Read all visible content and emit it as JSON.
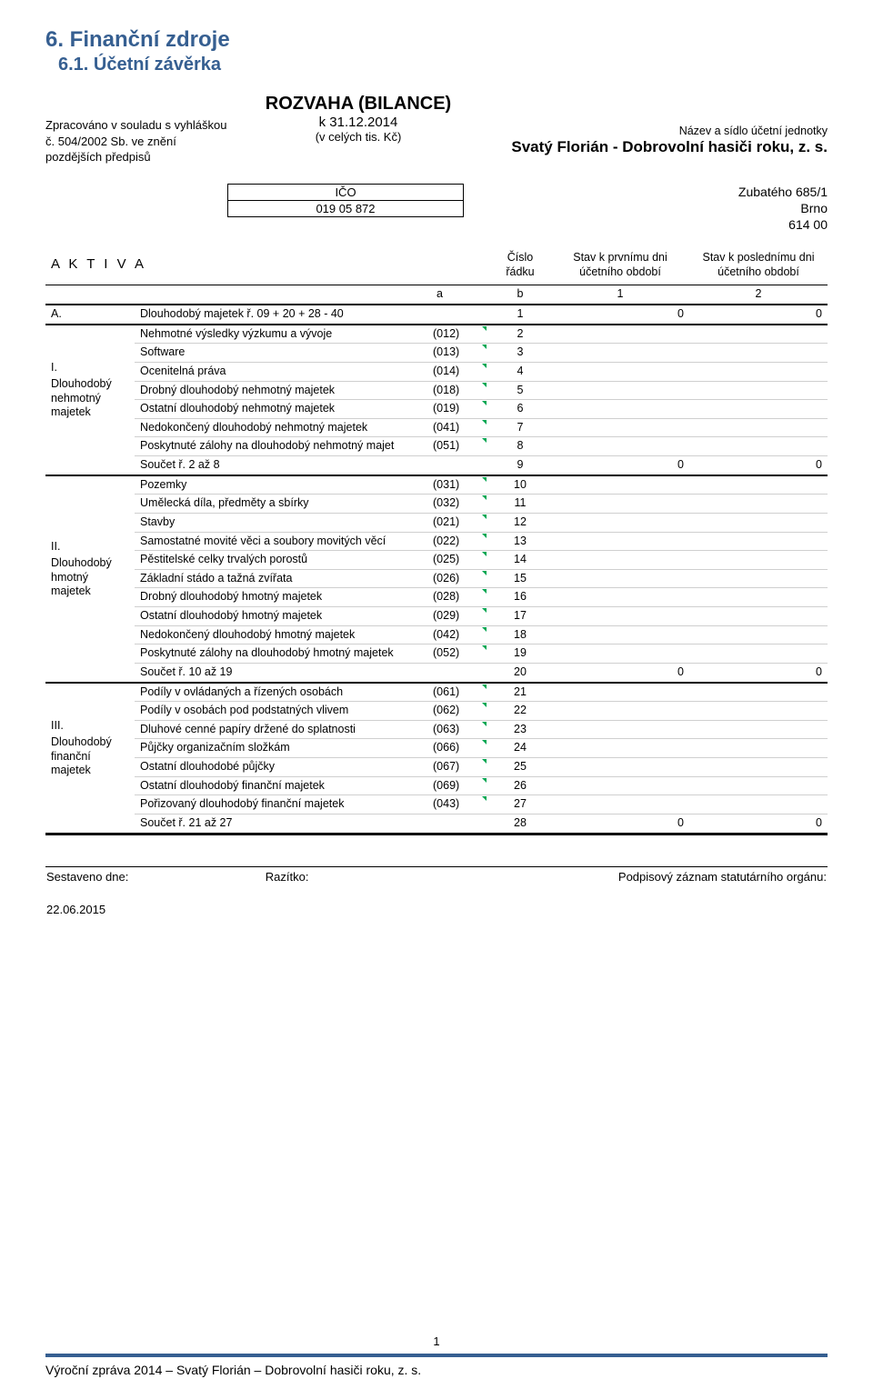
{
  "colors": {
    "heading": "#365f91",
    "text": "#000000",
    "tri_marker": "#00a651",
    "rule_light": "#cfcfcf",
    "rule_heavy": "#000000",
    "background": "#ffffff"
  },
  "typography": {
    "base_fontsize_pt": 9.5,
    "h1_pt": 18,
    "h2_pt": 15,
    "family": "Arial"
  },
  "headings": {
    "h1": "6. Finanční zdroje",
    "h2": "6.1. Účetní závěrka"
  },
  "header": {
    "left_note": "Zpracováno v souladu s vyhláškou č. 504/2002 Sb. ve znění pozdějších předpisů",
    "doc_title": "ROZVAHA (BILANCE)",
    "asof": "k 31.12.2014",
    "units": "(v celých tis. Kč)",
    "org_label": "Název a sídlo účetní jednotky",
    "org_name": "Svatý Florián - Dobrovolní hasiči roku, z. s.",
    "ico_label": "IČO",
    "ico_value": "019 05 872",
    "addr1": "Zubatého 685/1",
    "addr2": "Brno",
    "addr3": "614 00"
  },
  "table": {
    "title": "A K T I V A",
    "col_radek": "Číslo řádku",
    "col_stav1": "Stav k prvnímu dni účetního období",
    "col_stav2": "Stav k poslednímu dni účetního období",
    "ab": {
      "a": "a",
      "b": "b",
      "c1": "1",
      "c2": "2"
    },
    "sectionA": {
      "label": "A.",
      "name": "Dlouhodobý majetek ř. 09 + 20 + 28 - 40",
      "num": "1",
      "v1": "0",
      "v2": "0"
    },
    "groups": [
      {
        "side_roman": "I.",
        "side_label": "Dlouhodobý nehmotný majetek",
        "rows": [
          {
            "name": "Nehmotné výsledky výzkumu a vývoje",
            "acct": "(012)",
            "num": "2"
          },
          {
            "name": "Software",
            "acct": "(013)",
            "num": "3"
          },
          {
            "name": "Ocenitelná práva",
            "acct": "(014)",
            "num": "4"
          },
          {
            "name": "Drobný dlouhodobý nehmotný majetek",
            "acct": "(018)",
            "num": "5"
          },
          {
            "name": "Ostatní dlouhodobý nehmotný majetek",
            "acct": "(019)",
            "num": "6"
          },
          {
            "name": "Nedokončený dlouhodobý nehmotný majetek",
            "acct": "(041)",
            "num": "7"
          },
          {
            "name": "Poskytnuté zálohy na dlouhodobý nehmotný majet",
            "acct": "(051)",
            "num": "8"
          }
        ],
        "sum": {
          "name": "Součet ř. 2 až 8",
          "num": "9",
          "v1": "0",
          "v2": "0"
        }
      },
      {
        "side_roman": "II.",
        "side_label": "Dlouhodobý hmotný majetek",
        "rows": [
          {
            "name": "Pozemky",
            "acct": "(031)",
            "num": "10"
          },
          {
            "name": "Umělecká díla, předměty a sbírky",
            "acct": "(032)",
            "num": "11"
          },
          {
            "name": "Stavby",
            "acct": "(021)",
            "num": "12"
          },
          {
            "name": "Samostatné movité věci a soubory movitých věcí",
            "acct": "(022)",
            "num": "13"
          },
          {
            "name": "Pěstitelské celky trvalých porostů",
            "acct": "(025)",
            "num": "14"
          },
          {
            "name": "Základní stádo a tažná zvířata",
            "acct": "(026)",
            "num": "15"
          },
          {
            "name": "Drobný dlouhodobý hmotný majetek",
            "acct": "(028)",
            "num": "16"
          },
          {
            "name": "Ostatní dlouhodobý hmotný majetek",
            "acct": "(029)",
            "num": "17"
          },
          {
            "name": "Nedokončený dlouhodobý hmotný majetek",
            "acct": "(042)",
            "num": "18"
          },
          {
            "name": "Poskytnuté zálohy na dlouhodobý hmotný majetek",
            "acct": "(052)",
            "num": "19"
          }
        ],
        "sum": {
          "name": "Součet ř. 10 až 19",
          "num": "20",
          "v1": "0",
          "v2": "0"
        }
      },
      {
        "side_roman": "III.",
        "side_label": "Dlouhodobý finanční majetek",
        "rows": [
          {
            "name": "Podíly v ovládaných a řízených osobách",
            "acct": "(061)",
            "num": "21"
          },
          {
            "name": "Podíly v osobách pod podstatných vlivem",
            "acct": "(062)",
            "num": "22"
          },
          {
            "name": "Dluhové cenné papíry držené do splatnosti",
            "acct": "(063)",
            "num": "23"
          },
          {
            "name": "Půjčky organizačním složkám",
            "acct": "(066)",
            "num": "24"
          },
          {
            "name": "Ostatní dlouhodobé půjčky",
            "acct": "(067)",
            "num": "25"
          },
          {
            "name": "Ostatní dlouhodobý finanční majetek",
            "acct": "(069)",
            "num": "26"
          },
          {
            "name": "Pořizovaný dlouhodobý finanční majetek",
            "acct": "(043)",
            "num": "27"
          }
        ],
        "sum": {
          "name": "Součet ř. 21 až 27",
          "num": "28",
          "v1": "0",
          "v2": "0",
          "final": true
        }
      }
    ]
  },
  "signature": {
    "col1": "Sestaveno dne:",
    "col2": "Razítko:",
    "col3": "Podpisový záznam statutárního orgánu:",
    "date": "22.06.2015"
  },
  "footer": {
    "pagenum": "1",
    "bottom_text": "Výroční zpráva 2014 – Svatý Florián – Dobrovolní hasiči roku, z. s."
  }
}
